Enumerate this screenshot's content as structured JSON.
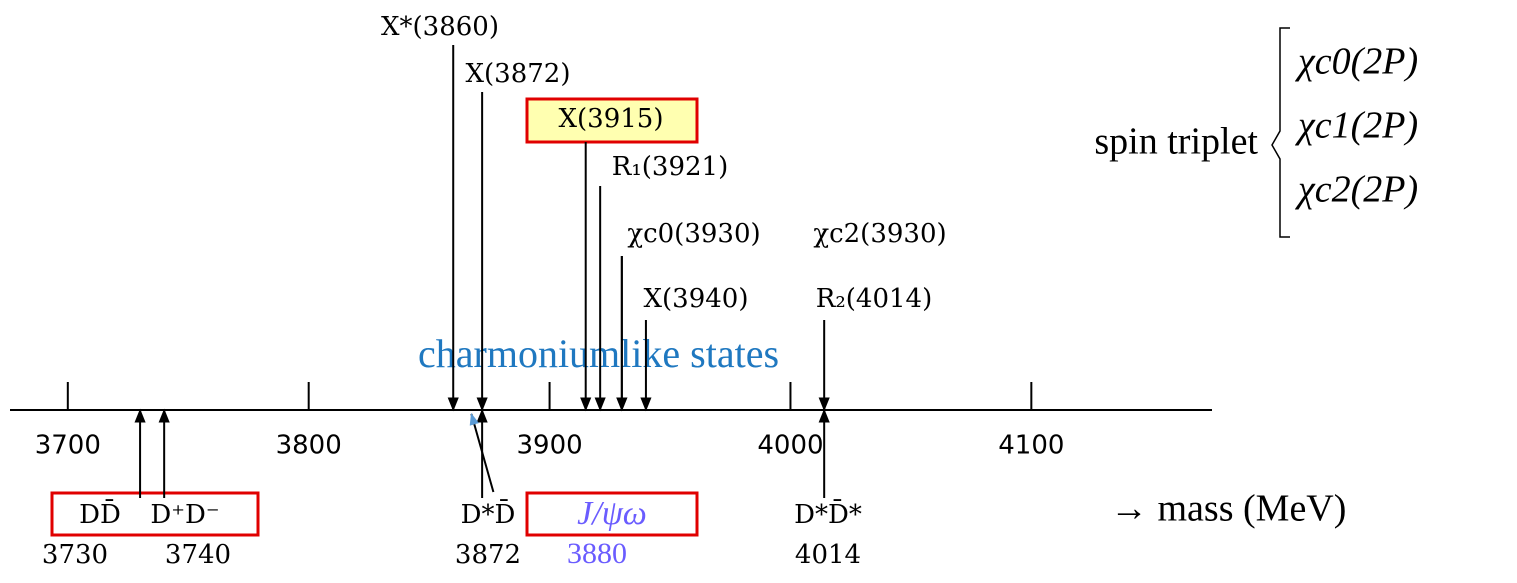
{
  "axis": {
    "range": [
      3676,
      4175
    ],
    "ticks": [
      3700,
      3800,
      3900,
      4000,
      4100
    ],
    "label": "→ mass (MeV)"
  },
  "states": [
    {
      "label": "X*(3860)",
      "mass": 3860
    },
    {
      "label": "X(3872)",
      "mass": 3872
    },
    {
      "label": "X(3915)",
      "mass": 3915
    },
    {
      "label": "R₁(3921)",
      "mass": 3921
    },
    {
      "label": "χc0(3930)",
      "mass": 3930
    },
    {
      "label": "χc2(3930)",
      "mass": 3930
    },
    {
      "label": "X(3940)",
      "mass": 3940
    },
    {
      "label": "R₂(4014)",
      "mass": 4014
    }
  ],
  "thresholds": [
    {
      "label": "DD̄",
      "mass": 3730
    },
    {
      "label": "D⁺D⁻",
      "mass": 3740
    },
    {
      "label": "D*D̄",
      "mass": 3872
    },
    {
      "label": "J/ψω",
      "mass": 3880
    },
    {
      "label": "D*D̄*",
      "mass": 4014
    }
  ],
  "annotation": "charmoniumlike states",
  "spin_triplet": {
    "label": "spin triplet",
    "members": [
      "χc0(2P)",
      "χc1(2P)",
      "χc2(2P)"
    ]
  }
}
